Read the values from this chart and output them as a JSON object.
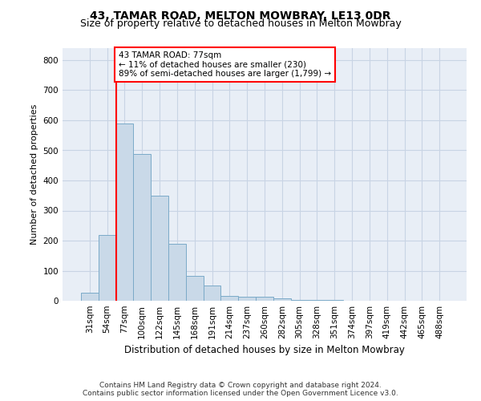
{
  "title": "43, TAMAR ROAD, MELTON MOWBRAY, LE13 0DR",
  "subtitle": "Size of property relative to detached houses in Melton Mowbray",
  "xlabel": "Distribution of detached houses by size in Melton Mowbray",
  "ylabel": "Number of detached properties",
  "footer_line1": "Contains HM Land Registry data © Crown copyright and database right 2024.",
  "footer_line2": "Contains public sector information licensed under the Open Government Licence v3.0.",
  "bin_labels": [
    "31sqm",
    "54sqm",
    "77sqm",
    "100sqm",
    "122sqm",
    "145sqm",
    "168sqm",
    "191sqm",
    "214sqm",
    "237sqm",
    "260sqm",
    "282sqm",
    "305sqm",
    "328sqm",
    "351sqm",
    "374sqm",
    "397sqm",
    "419sqm",
    "442sqm",
    "465sqm",
    "488sqm"
  ],
  "bar_values": [
    28,
    218,
    590,
    487,
    349,
    190,
    82,
    52,
    16,
    14,
    13,
    8,
    2,
    2,
    2,
    1,
    0,
    0,
    1,
    0,
    0
  ],
  "bar_color": "#c9d9e8",
  "bar_edge_color": "#7baac8",
  "vline_color": "red",
  "vline_index": 2,
  "annotation_line1": "43 TAMAR ROAD: 77sqm",
  "annotation_line2": "← 11% of detached houses are smaller (230)",
  "annotation_line3": "89% of semi-detached houses are larger (1,799) →",
  "annotation_box_color": "white",
  "annotation_box_edge_color": "red",
  "ylim": [
    0,
    840
  ],
  "yticks": [
    0,
    100,
    200,
    300,
    400,
    500,
    600,
    700,
    800
  ],
  "grid_color": "#c8d4e4",
  "background_color": "#e8eef6",
  "title_fontsize": 10,
  "subtitle_fontsize": 9,
  "ylabel_fontsize": 8,
  "xlabel_fontsize": 8.5,
  "tick_fontsize": 7.5,
  "footer_fontsize": 6.5
}
